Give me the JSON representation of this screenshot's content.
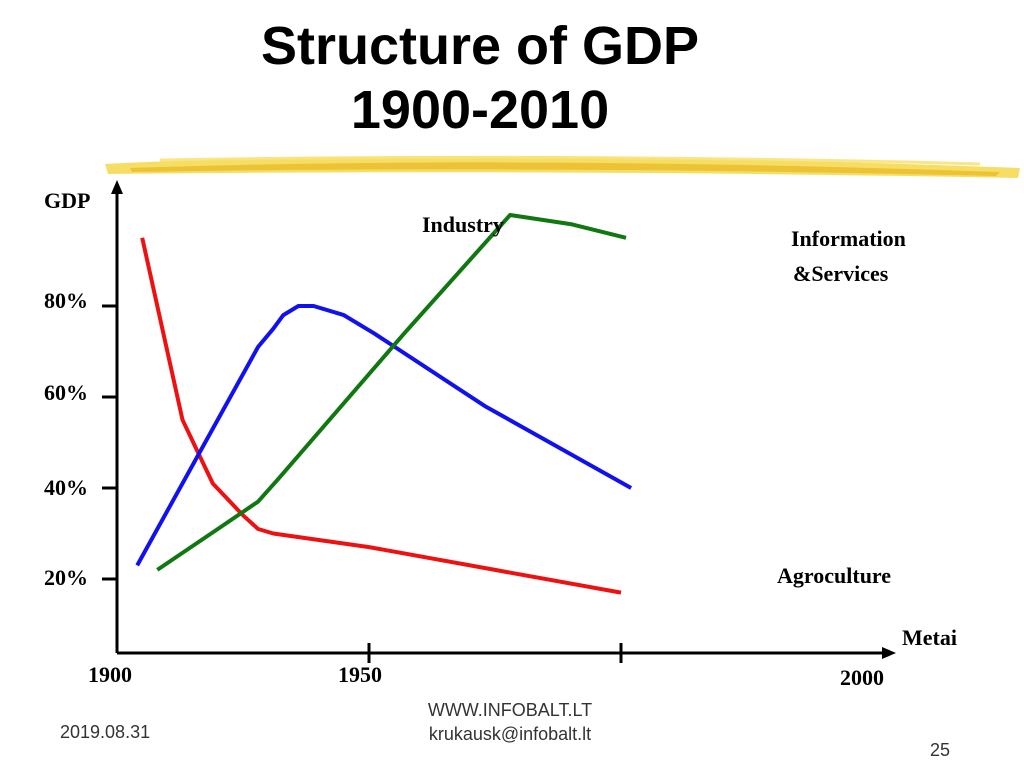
{
  "slide": {
    "title_line1": "Structure of GDP",
    "title_line2": "1900-2010",
    "footer_date": "2019.08.31",
    "footer_site": "WWW.INFOBALT.LT",
    "footer_email": "krukausk@infobalt.lt",
    "page_number": "25"
  },
  "chart_data": {
    "type": "line",
    "title": "",
    "xlabel": "Metai",
    "ylabel": "GDP",
    "x_ticks": [
      "1900",
      "1950",
      "2000"
    ],
    "y_ticks": [
      "20%",
      "40%",
      "60%",
      "80%"
    ],
    "grid": false,
    "series": [
      {
        "name": "Agroculture",
        "label_lines": [
          "Agroculture"
        ],
        "color": "#ee1111",
        "points": [
          [
            1905,
            95
          ],
          [
            1913,
            55
          ],
          [
            1916,
            48
          ],
          [
            1919,
            41
          ],
          [
            1925,
            34
          ],
          [
            1928,
            31
          ],
          [
            1931,
            30
          ],
          [
            1950,
            27
          ],
          [
            1975,
            22
          ],
          [
            2000,
            17
          ]
        ]
      },
      {
        "name": "Industry",
        "label_lines": [
          "Industry"
        ],
        "color": "#1111ee",
        "points": [
          [
            1904,
            23
          ],
          [
            1916,
            47
          ],
          [
            1928,
            71
          ],
          [
            1931,
            75
          ],
          [
            1933,
            78
          ],
          [
            1936,
            80
          ],
          [
            1939,
            80
          ],
          [
            1945,
            78
          ],
          [
            1951,
            74
          ],
          [
            1973,
            58
          ],
          [
            2002,
            40
          ]
        ]
      },
      {
        "name": "Information &Services",
        "label_lines": [
          "Information",
          "&Services"
        ],
        "color": "#117711",
        "points": [
          [
            1908,
            22
          ],
          [
            1920,
            31
          ],
          [
            1928,
            37
          ],
          [
            1932,
            42
          ],
          [
            1957,
            74
          ],
          [
            1978,
            100
          ],
          [
            1990,
            98
          ],
          [
            2001,
            95
          ]
        ]
      }
    ]
  }
}
